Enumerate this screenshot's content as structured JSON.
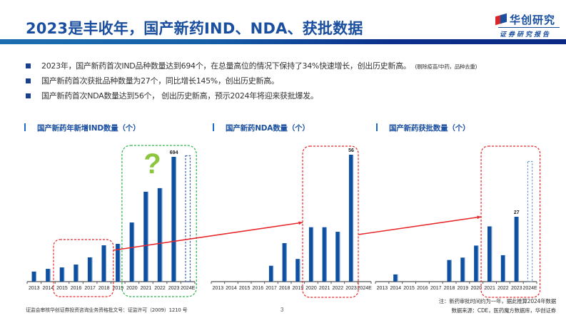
{
  "header": {
    "title": "2023是丰收年，国产新药IND、NDA、获批数据",
    "logo_name": "华创研究",
    "logo_sub": "证券研究报告",
    "colors": {
      "title": "#1a4fa0",
      "bar_start": "#1d6eb0",
      "bar_end": "#0a2a85"
    }
  },
  "bullets": [
    {
      "text": "2023年，国产新药首次IND品种数量达到694个，在总量高位的情况下保持了34%快速增长，创出历史新高。",
      "note": "(剔除疫苗/中药，品种去重)"
    },
    {
      "text": "国产新药首次获批品种数量为27个，同比增长145%，创出历史新高。",
      "note": ""
    },
    {
      "text": "国产新药首次NDA数量达到56个， 创出历史新高，预示2024年将迎来获批爆发。",
      "note": ""
    }
  ],
  "charts": {
    "ind_title": "国产新药年新增IND数量（个）",
    "nda_title": "国产新药NDA数量（个）",
    "approval_title": "国产新药获批数量（个）",
    "question_mark": "?"
  },
  "chart_data": [
    {
      "type": "bar",
      "title": "国产新药年新增IND数量（个）",
      "categories": [
        "2013",
        "2014",
        "2015",
        "2016",
        "2017",
        "2018",
        "2019",
        "2020",
        "2021",
        "2022",
        "2023",
        "2024E"
      ],
      "values": [
        56,
        71,
        79,
        95,
        135,
        202,
        210,
        329,
        500,
        520,
        694,
        null
      ],
      "estimate_outline": {
        "category": "2024E",
        "approx_value": 700
      },
      "data_labels": {
        "2023": "694"
      },
      "annotations": [
        {
          "type": "red-dashed-box",
          "covers": [
            "2015",
            "2016",
            "2017",
            "2018"
          ]
        },
        {
          "type": "green-dashed-box",
          "covers": [
            "2020",
            "2021",
            "2022",
            "2023",
            "2024E"
          ],
          "label": "?"
        }
      ],
      "bar_color": "#0e4fa0",
      "xlabel": "",
      "ylabel": "",
      "ylim": [
        0,
        700
      ],
      "grid": false
    },
    {
      "type": "bar",
      "title": "国产新药NDA数量（个）",
      "categories": [
        "2013",
        "2014",
        "2015",
        "2016",
        "2017",
        "2018",
        "2019",
        "2020",
        "2021",
        "2022",
        "2023",
        "2024E"
      ],
      "values": [
        0,
        0,
        0,
        0,
        7,
        17,
        10,
        24,
        24,
        22,
        56,
        null
      ],
      "data_labels": {
        "2023": "56"
      },
      "annotations": [
        {
          "type": "red-dashed-box",
          "covers": [
            "2020",
            "2021",
            "2022",
            "2023"
          ]
        },
        {
          "type": "arrow",
          "from": "IND 2018 box",
          "to": "NDA 2020 box"
        }
      ],
      "bar_color": "#0e4fa0",
      "xlabel": "",
      "ylabel": "",
      "ylim": [
        0,
        56
      ],
      "grid": false
    },
    {
      "type": "bar",
      "title": "国产新药获批数量（个）",
      "categories": [
        "2013",
        "2014",
        "2015",
        "2016",
        "2017",
        "2018",
        "2019",
        "2020",
        "2021",
        "2022",
        "2023",
        "2024E"
      ],
      "values": [
        0,
        3,
        0,
        0,
        0,
        9,
        10,
        15,
        23,
        11,
        27,
        null
      ],
      "estimate_outline": {
        "category": "2024E",
        "approx_value": 50
      },
      "data_labels": {
        "2023": "27"
      },
      "annotations": [
        {
          "type": "red-dashed-box",
          "covers": [
            "2021",
            "2022",
            "2023",
            "2024E"
          ]
        },
        {
          "type": "arrow",
          "from": "NDA 2023 box",
          "to": "Approval 2021 box"
        }
      ],
      "bar_color": "#0e4fa0",
      "xlabel": "",
      "ylabel": "",
      "ylim": [
        0,
        55
      ],
      "grid": false
    }
  ],
  "footer": {
    "license": "证监会审核华创证券投资咨询业务资格批文号：证监许可（2009）1210 号",
    "page": "3",
    "note": "注：新药审批时间约为一年，据此推算2024年数据",
    "source": "数据来源：CDE，医药魔方数据库，华创证券"
  }
}
